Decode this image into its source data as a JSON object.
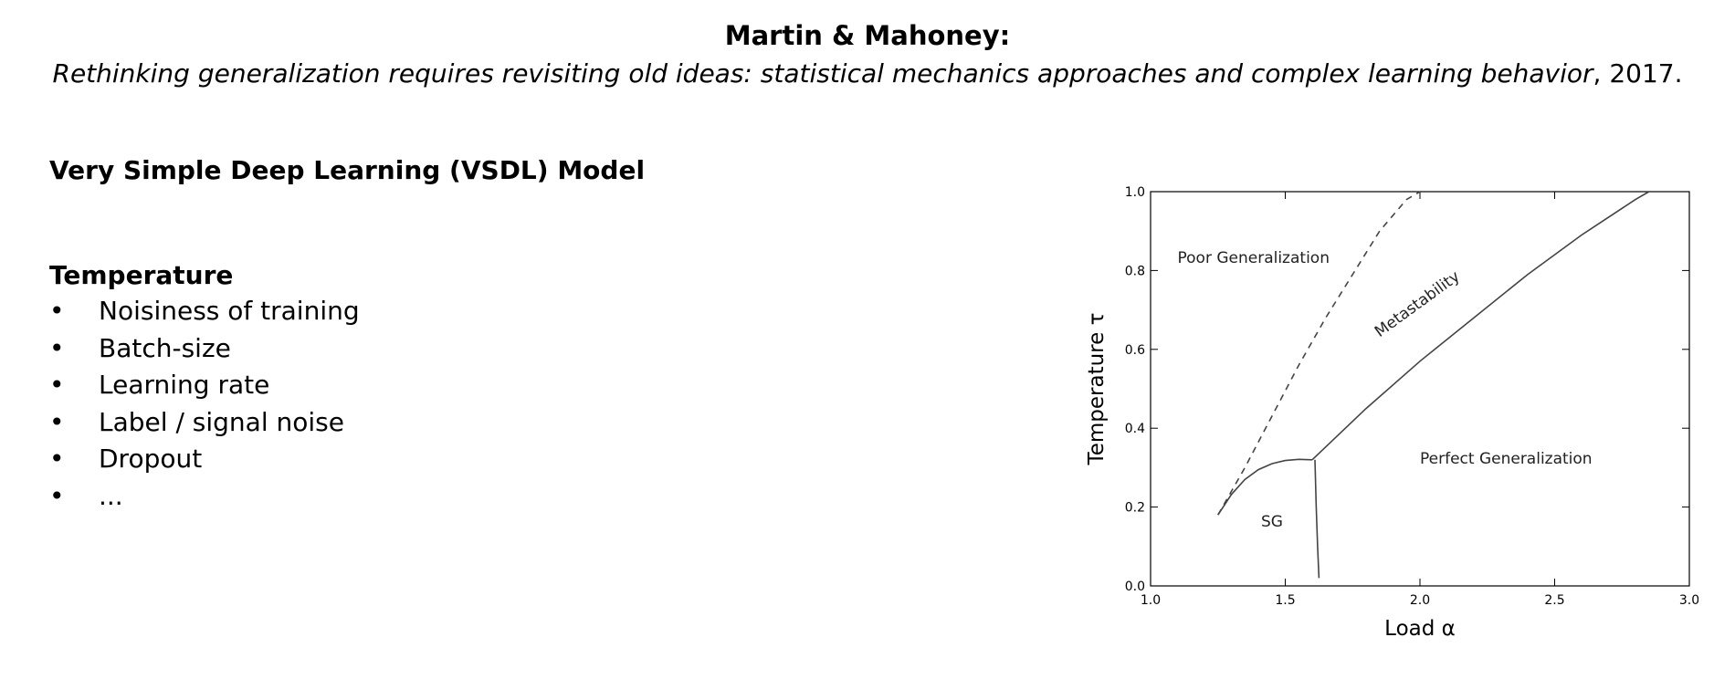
{
  "header": {
    "author": "Martin & Mahoney:",
    "citation_title": "Rethinking generalization requires revisiting old ideas: statistical mechanics approaches and complex learning behavior",
    "citation_suffix": ", 2017."
  },
  "model_title": "Very Simple Deep Learning (VSDL) Model",
  "temperature_section": {
    "heading": "Temperature",
    "bullet_glyph": "•",
    "items": [
      "Noisiness of training",
      "Batch-size",
      "Learning rate",
      "Label / signal noise",
      "Dropout",
      "..."
    ]
  },
  "chart_data": {
    "type": "line",
    "xlabel": "Load α",
    "ylabel": "Temperature τ",
    "xlim": [
      1.0,
      3.0
    ],
    "ylim": [
      0.0,
      1.0
    ],
    "x_ticks": [
      "1.0",
      "1.5",
      "2.0",
      "2.5",
      "3.0"
    ],
    "y_ticks": [
      "0.0",
      "0.2",
      "0.4",
      "0.6",
      "0.8",
      "1.0"
    ],
    "grid": false,
    "line_color": "#444444",
    "series": [
      {
        "style": "dashed",
        "points": [
          [
            1.25,
            0.18
          ],
          [
            1.35,
            0.3
          ],
          [
            1.45,
            0.43
          ],
          [
            1.55,
            0.56
          ],
          [
            1.65,
            0.68
          ],
          [
            1.75,
            0.79
          ],
          [
            1.85,
            0.9
          ],
          [
            1.95,
            0.98
          ],
          [
            2.0,
            1.0
          ]
        ]
      },
      {
        "style": "solid",
        "points": [
          [
            1.25,
            0.18
          ],
          [
            1.3,
            0.232
          ],
          [
            1.35,
            0.27
          ],
          [
            1.4,
            0.295
          ],
          [
            1.45,
            0.31
          ],
          [
            1.5,
            0.318
          ],
          [
            1.55,
            0.321
          ],
          [
            1.6,
            0.32
          ]
        ]
      },
      {
        "style": "solid",
        "points": [
          [
            1.61,
            0.32
          ],
          [
            1.615,
            0.2
          ],
          [
            1.62,
            0.1
          ],
          [
            1.625,
            0.02
          ]
        ]
      },
      {
        "style": "solid",
        "points": [
          [
            1.6,
            0.32
          ],
          [
            1.8,
            0.45
          ],
          [
            2.0,
            0.57
          ],
          [
            2.2,
            0.68
          ],
          [
            2.4,
            0.79
          ],
          [
            2.6,
            0.89
          ],
          [
            2.8,
            0.98
          ],
          [
            2.85,
            1.0
          ]
        ]
      }
    ],
    "annotations": [
      {
        "text": "Poor Generalization",
        "x": 1.1,
        "y": 0.82,
        "rotate": 0
      },
      {
        "text": "Metastability",
        "x": 1.85,
        "y": 0.63,
        "rotate": -36
      },
      {
        "text": "Perfect Generalization",
        "x": 2.0,
        "y": 0.31,
        "rotate": 0
      },
      {
        "text": "SG",
        "x": 1.41,
        "y": 0.15,
        "rotate": 0
      }
    ]
  }
}
